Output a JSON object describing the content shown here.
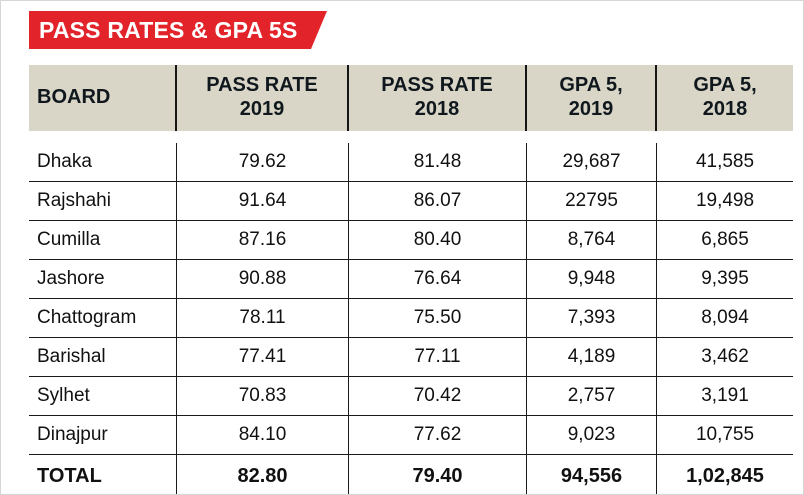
{
  "banner": {
    "title": "PASS RATES & GPA 5S"
  },
  "colors": {
    "banner_red": "#e2232a",
    "header_bg": "#d9d6c7",
    "text": "#111111"
  },
  "table": {
    "headers": [
      {
        "line1": "BOARD",
        "line2": ""
      },
      {
        "line1": "PASS RATE",
        "line2": "2019"
      },
      {
        "line1": "PASS RATE",
        "line2": "2018"
      },
      {
        "line1": "GPA 5,",
        "line2": "2019"
      },
      {
        "line1": "GPA 5,",
        "line2": "2018"
      }
    ],
    "rows": [
      {
        "board": "Dhaka",
        "pass_2019": "79.62",
        "pass_2018": "81.48",
        "gpa5_2019": "29,687",
        "gpa5_2018": "41,585"
      },
      {
        "board": "Rajshahi",
        "pass_2019": "91.64",
        "pass_2018": "86.07",
        "gpa5_2019": "22795",
        "gpa5_2018": "19,498"
      },
      {
        "board": "Cumilla",
        "pass_2019": "87.16",
        "pass_2018": "80.40",
        "gpa5_2019": "8,764",
        "gpa5_2018": "6,865"
      },
      {
        "board": "Jashore",
        "pass_2019": "90.88",
        "pass_2018": "76.64",
        "gpa5_2019": "9,948",
        "gpa5_2018": "9,395"
      },
      {
        "board": "Chattogram",
        "pass_2019": "78.11",
        "pass_2018": "75.50",
        "gpa5_2019": "7,393",
        "gpa5_2018": "8,094"
      },
      {
        "board": "Barishal",
        "pass_2019": "77.41",
        "pass_2018": "77.11",
        "gpa5_2019": "4,189",
        "gpa5_2018": "3,462"
      },
      {
        "board": "Sylhet",
        "pass_2019": "70.83",
        "pass_2018": "70.42",
        "gpa5_2019": "2,757",
        "gpa5_2018": "3,191"
      },
      {
        "board": "Dinajpur",
        "pass_2019": "84.10",
        "pass_2018": "77.62",
        "gpa5_2019": "9,023",
        "gpa5_2018": "10,755"
      },
      {
        "board": "TOTAL",
        "pass_2019": "82.80",
        "pass_2018": "79.40",
        "gpa5_2019": "94,556",
        "gpa5_2018": "1,02,845"
      }
    ]
  },
  "chart_data": {
    "type": "table",
    "title": "PASS RATES & GPA 5S",
    "columns": [
      "BOARD",
      "PASS RATE 2019",
      "PASS RATE 2018",
      "GPA 5, 2019",
      "GPA 5, 2018"
    ],
    "rows": [
      [
        "Dhaka",
        79.62,
        81.48,
        29687,
        41585
      ],
      [
        "Rajshahi",
        91.64,
        86.07,
        22795,
        19498
      ],
      [
        "Cumilla",
        87.16,
        80.4,
        8764,
        6865
      ],
      [
        "Jashore",
        90.88,
        76.64,
        9948,
        9395
      ],
      [
        "Chattogram",
        78.11,
        75.5,
        7393,
        8094
      ],
      [
        "Barishal",
        77.41,
        77.11,
        4189,
        3462
      ],
      [
        "Sylhet",
        70.83,
        70.42,
        2757,
        3191
      ],
      [
        "Dinajpur",
        84.1,
        77.62,
        9023,
        10755
      ]
    ],
    "total": [
      "TOTAL",
      82.8,
      79.4,
      94556,
      102845
    ]
  }
}
